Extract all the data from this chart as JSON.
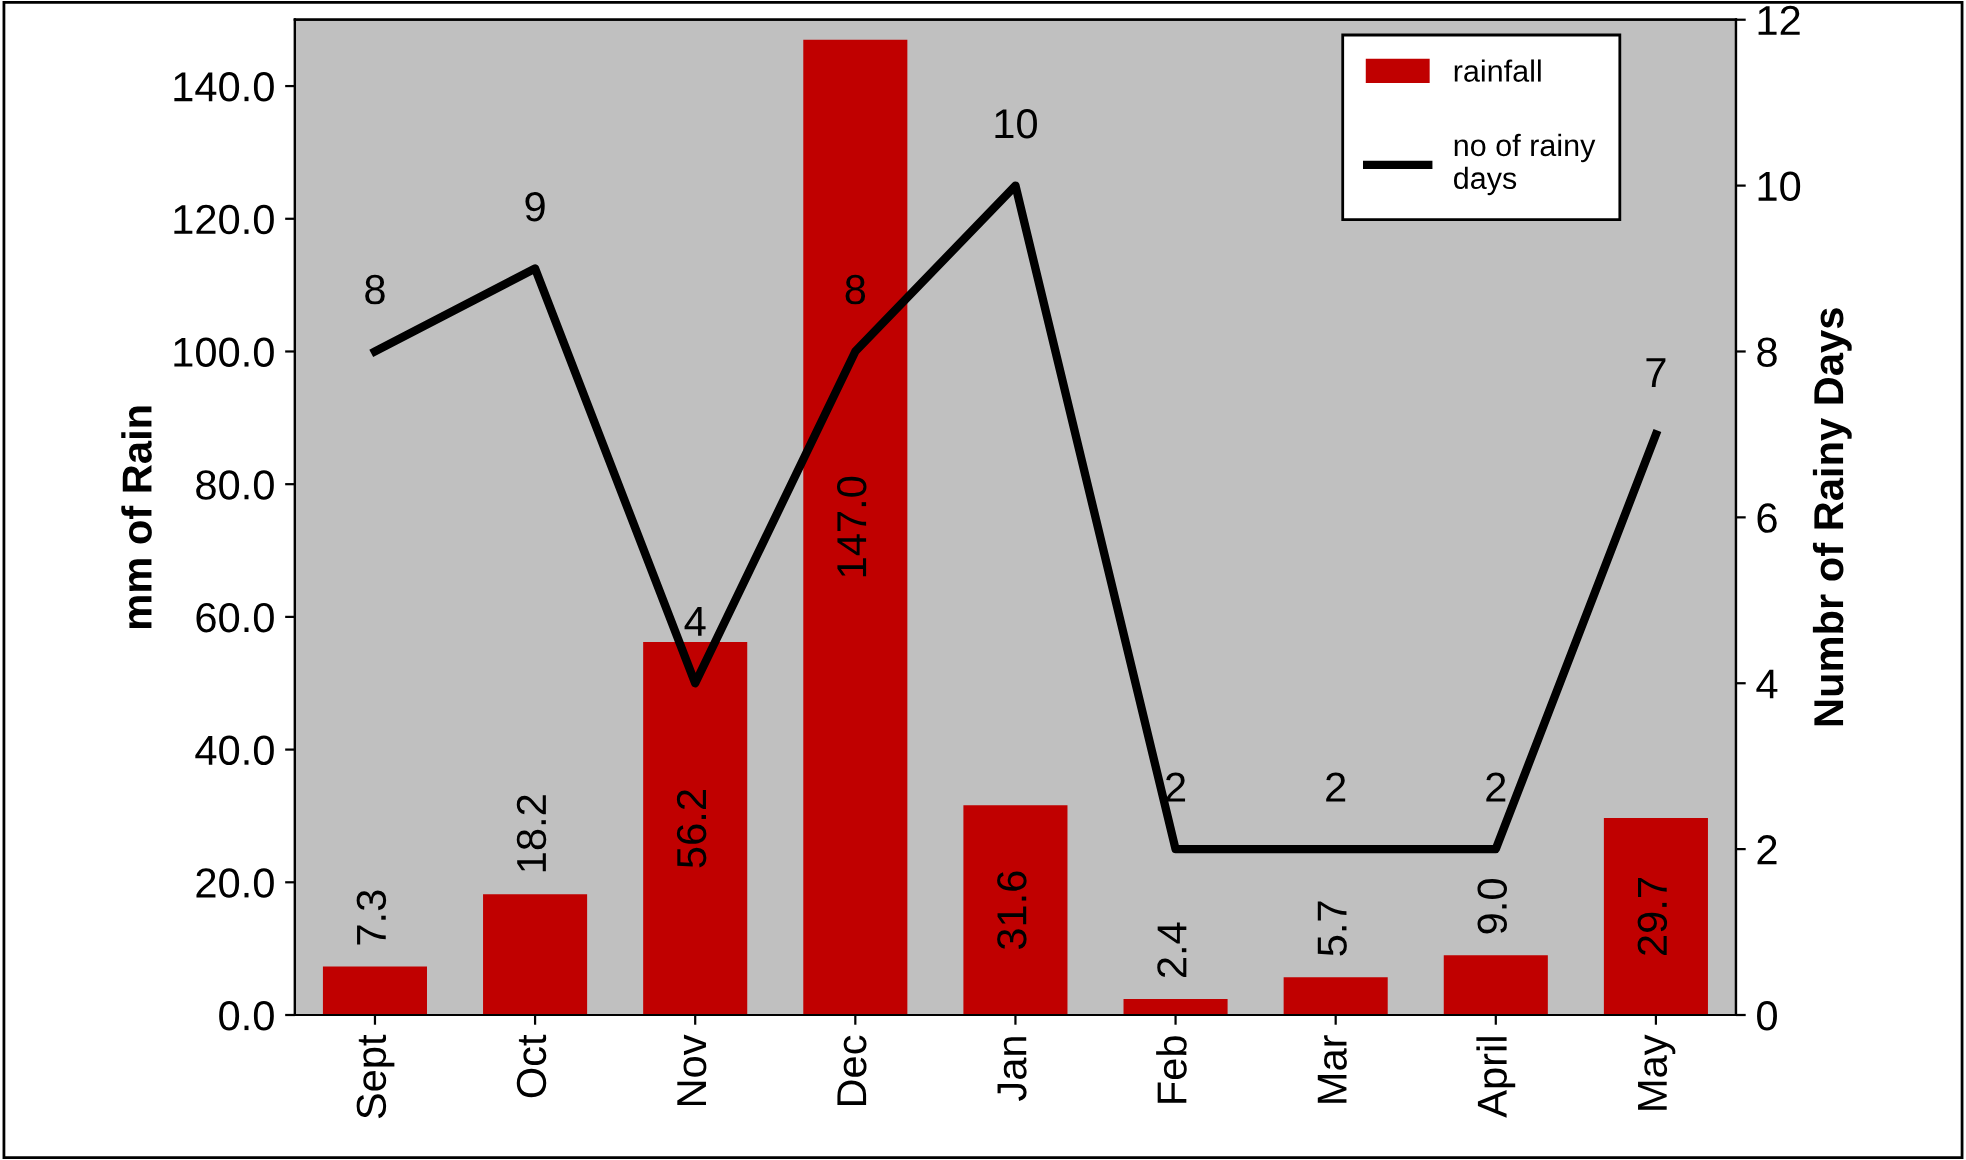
{
  "chart_data": {
    "type": "bar",
    "ylabel": "mm of Rain",
    "y2label": "Numbr of Rainy Days",
    "categories": [
      "Sept",
      "Oct",
      "Nov",
      "Dec",
      "Jan",
      "Feb",
      "Mar",
      "April",
      "May"
    ],
    "series": [
      {
        "name": "rainfall",
        "color": "#c00000",
        "values": [
          7.3,
          18.2,
          56.2,
          147.0,
          31.6,
          2.4,
          5.7,
          9.0,
          29.7
        ],
        "value_labels": [
          "7.3",
          "18.2",
          "56.2",
          "147.0",
          "31.6",
          "2.4",
          "5.7",
          "9.0",
          "29.7"
        ]
      },
      {
        "name": "no of rainy\ndays",
        "type": "line",
        "axis": "y2",
        "color": "#000000",
        "values": [
          8,
          9,
          4,
          8,
          10,
          2,
          2,
          2,
          7
        ],
        "value_labels": [
          "8",
          "9",
          "4",
          "8",
          "10",
          "2",
          "2",
          "2",
          "7"
        ]
      }
    ],
    "ylim": [
      0,
      150
    ],
    "yticks": [
      {
        "value": 0,
        "label": "0.0"
      },
      {
        "value": 20,
        "label": "20.0"
      },
      {
        "value": 40,
        "label": "40.0"
      },
      {
        "value": 60,
        "label": "60.0"
      },
      {
        "value": 80,
        "label": "80.0"
      },
      {
        "value": 100,
        "label": "100.0"
      },
      {
        "value": 120,
        "label": "120.0"
      },
      {
        "value": 140,
        "label": "140.0"
      }
    ],
    "y2lim": [
      0,
      12
    ],
    "y2ticks": [
      0,
      2,
      4,
      6,
      8,
      10,
      12
    ],
    "grid": false,
    "legend": "top right",
    "marker": "none",
    "line_style": "solid"
  }
}
